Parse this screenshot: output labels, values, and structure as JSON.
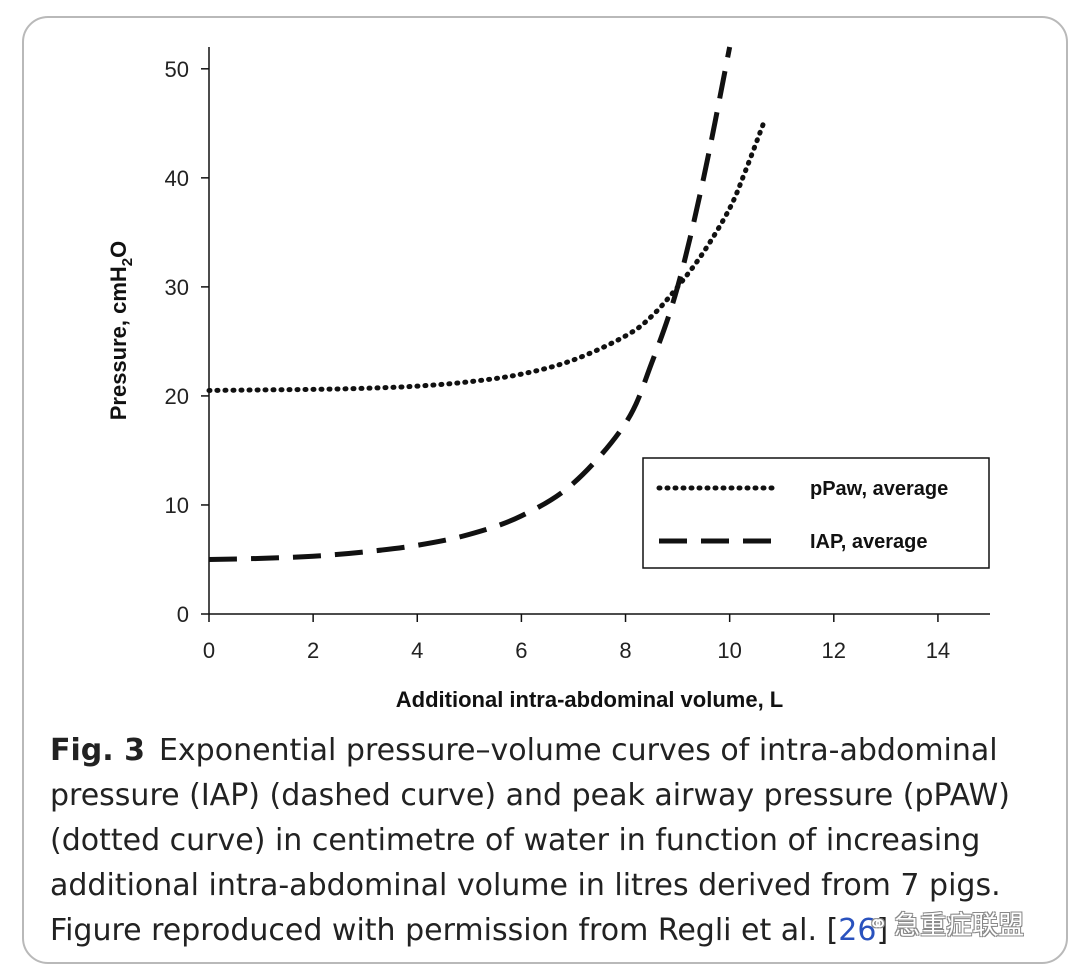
{
  "chart_data": {
    "type": "line",
    "xlabel": "Additional intra-abdominal volume, L",
    "ylabel": "Pressure, cmH2O",
    "ylabel_main": "Pressure, cmH",
    "ylabel_sub": "2",
    "ylabel_tail": "O",
    "xlim": [
      0,
      15
    ],
    "ylim": [
      0,
      52
    ],
    "x_ticks": [
      0,
      2,
      4,
      6,
      8,
      10,
      12,
      14
    ],
    "y_ticks": [
      0,
      10,
      20,
      30,
      40,
      50
    ],
    "grid": false,
    "legend_position": "lower-right",
    "series": [
      {
        "name": "pPaw, average",
        "style": "dotted",
        "x": [
          0,
          1,
          2,
          3,
          4,
          5,
          6,
          7,
          8,
          8.5,
          9,
          9.5,
          10,
          10.3,
          10.65
        ],
        "y": [
          20.5,
          20.55,
          20.6,
          20.7,
          20.9,
          21.3,
          22,
          23.3,
          25.5,
          27.3,
          30,
          33.2,
          37.2,
          40.6,
          45
        ]
      },
      {
        "name": "IAP, average",
        "style": "dashed",
        "x": [
          0,
          1,
          2,
          3,
          4,
          5,
          6,
          7,
          8,
          8.5,
          9,
          9.5,
          10
        ],
        "y": [
          5,
          5.1,
          5.3,
          5.7,
          6.3,
          7.3,
          9,
          12,
          17.5,
          23,
          30,
          40,
          52
        ]
      }
    ]
  },
  "caption": {
    "fig_label": "Fig. 3",
    "text": "Exponential pressure–volume curves of intra-abdominal pressure (IAP) (dashed curve) and peak airway pressure (pPAW) (dotted curve) in centimetre of water in function of increasing additional intra-abdominal volume in litres derived from 7 pigs. Figure reproduced with permission from Regli et al. [",
    "ref": "26",
    "close": "]"
  },
  "watermark": {
    "icon": "wechat-icon",
    "text": "急重症联盟"
  },
  "colors": {
    "line": "#111111",
    "frame": "#b9b9b9",
    "link": "#2a52be"
  }
}
